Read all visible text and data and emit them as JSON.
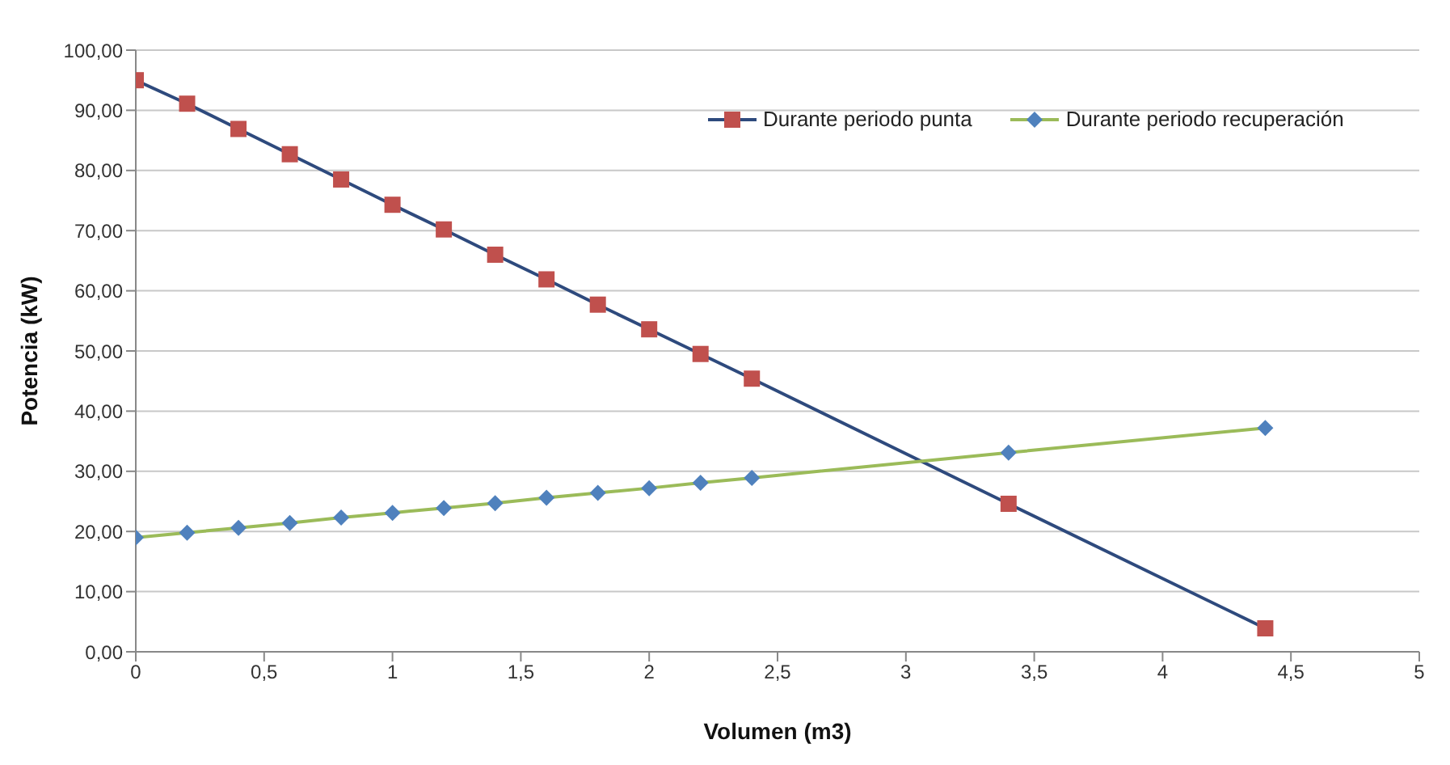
{
  "chart_data": {
    "type": "line",
    "xlabel": "Volumen (m3)",
    "ylabel": "Potencia (kW)",
    "xlim": [
      0,
      5
    ],
    "xticks": [
      0,
      {
        "value": 0.5,
        "label": "0,5"
      },
      1,
      {
        "value": 1.5,
        "label": "1,5"
      },
      2,
      {
        "value": 2.5,
        "label": "2,5"
      },
      3,
      {
        "value": 3.5,
        "label": "3,5"
      },
      4,
      {
        "value": 4.5,
        "label": "4,5"
      },
      5
    ],
    "ylim": [
      0,
      100
    ],
    "yticks": [
      {
        "value": 0,
        "label": "0,00"
      },
      {
        "value": 10,
        "label": "10,00"
      },
      {
        "value": 20,
        "label": "20,00"
      },
      {
        "value": 30,
        "label": "30,00"
      },
      {
        "value": 40,
        "label": "40,00"
      },
      {
        "value": 50,
        "label": "50,00"
      },
      {
        "value": 60,
        "label": "60,00"
      },
      {
        "value": 70,
        "label": "70,00"
      },
      {
        "value": 80,
        "label": "80,00"
      },
      {
        "value": 90,
        "label": "90,00"
      },
      {
        "value": 100,
        "label": "100,00"
      }
    ],
    "grid": "y",
    "legend": "top right",
    "line_style": "solid",
    "x": [
      0,
      0.2,
      0.4,
      0.6,
      0.8,
      1,
      1.2,
      1.4,
      1.6,
      1.8,
      2,
      2.2,
      2.4,
      3.4,
      4.4
    ],
    "series": [
      {
        "name": "Durante periodo punta",
        "color": "#2e4a7d",
        "colors": [
          "#c0504d",
          "#c0504d",
          "#c0504d",
          "#c0504d",
          "#c0504d",
          "#c0504d",
          "#c0504d",
          "#c0504d",
          "#c0504d",
          "#c0504d",
          "#c0504d",
          "#c0504d",
          "#c0504d",
          "#c0504d",
          "#c0504d"
        ],
        "marker": "square",
        "values": [
          95.0,
          91.1,
          86.9,
          82.7,
          78.5,
          74.3,
          70.2,
          66.0,
          61.9,
          57.7,
          53.6,
          49.5,
          45.4,
          24.6,
          3.9
        ]
      },
      {
        "name": "Durante periodo recuperación",
        "color": "#9bbb59",
        "colors": [
          "#4f81bd",
          "#4f81bd",
          "#4f81bd",
          "#4f81bd",
          "#4f81bd",
          "#4f81bd",
          "#4f81bd",
          "#4f81bd",
          "#4f81bd",
          "#4f81bd",
          "#4f81bd",
          "#4f81bd",
          "#4f81bd",
          "#4f81bd",
          "#4f81bd"
        ],
        "marker": "diamond",
        "values": [
          19.0,
          19.8,
          20.6,
          21.4,
          22.3,
          23.1,
          23.9,
          24.7,
          25.6,
          26.4,
          27.2,
          28.1,
          28.9,
          33.1,
          37.2
        ]
      }
    ]
  }
}
